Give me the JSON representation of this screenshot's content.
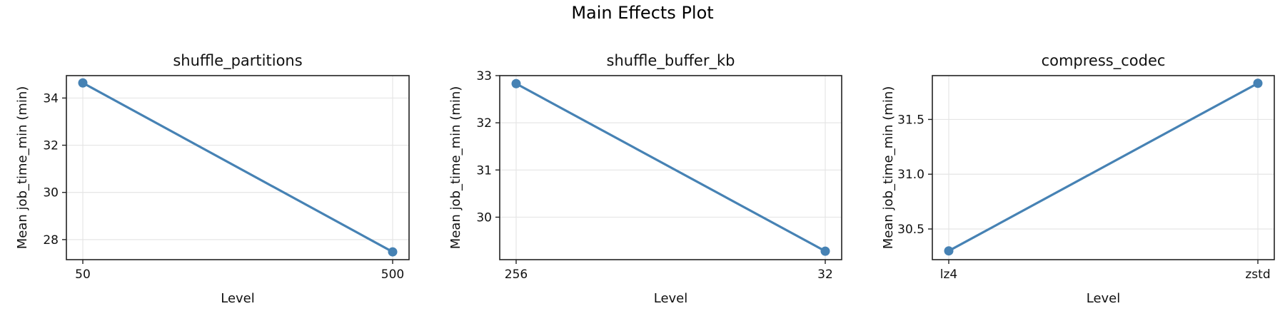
{
  "figure": {
    "title": "Main Effects Plot"
  },
  "chart_data": [
    {
      "type": "line",
      "title": "shuffle_partitions",
      "xlabel": "Level",
      "ylabel": "Mean job_time_min (min)",
      "categories": [
        "50",
        "500"
      ],
      "values": [
        34.64,
        27.48
      ],
      "ylim": [
        27.15,
        34.95
      ],
      "yticks": [
        28,
        30,
        32,
        34
      ],
      "ytick_labels": [
        "28",
        "30",
        "32",
        "34"
      ],
      "grid": true,
      "marker": "circle",
      "color": "#4682b4"
    },
    {
      "type": "line",
      "title": "shuffle_buffer_kb",
      "xlabel": "Level",
      "ylabel": "Mean job_time_min (min)",
      "categories": [
        "256",
        "32"
      ],
      "values": [
        32.83,
        29.28
      ],
      "ylim": [
        29.1,
        33.0
      ],
      "yticks": [
        30,
        31,
        32,
        33
      ],
      "ytick_labels": [
        "30",
        "31",
        "32",
        "33"
      ],
      "grid": true,
      "marker": "circle",
      "color": "#4682b4"
    },
    {
      "type": "line",
      "title": "compress_codec",
      "xlabel": "Level",
      "ylabel": "Mean job_time_min (min)",
      "categories": [
        "lz4",
        "zstd"
      ],
      "values": [
        30.3,
        31.83
      ],
      "ylim": [
        30.22,
        31.9
      ],
      "yticks": [
        30.5,
        31.0,
        31.5
      ],
      "ytick_labels": [
        "30.5",
        "31.0",
        "31.5"
      ],
      "grid": true,
      "marker": "circle",
      "color": "#4682b4"
    }
  ]
}
